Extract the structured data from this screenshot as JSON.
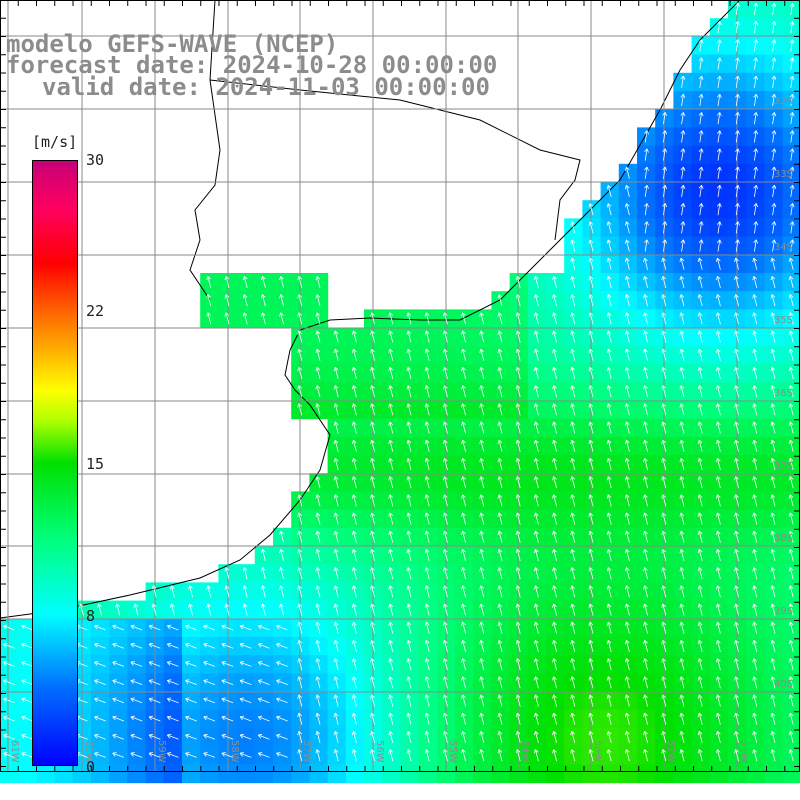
{
  "title": {
    "model": "modelo GEFS-WAVE (NCEP)",
    "forecast": "forecast date: 2024-10-28 00:00:00",
    "valid": "valid date: 2024-11-03 00:00:00"
  },
  "colorbar": {
    "unit": "[m/s]",
    "ticks": [
      "30",
      "22",
      "15",
      "8",
      "0"
    ],
    "colors": [
      "#0000ff",
      "#00ffff",
      "#00e000",
      "#ffff00",
      "#ff0000",
      "#c80078"
    ]
  },
  "grid": {
    "lat_labels": [
      "32S",
      "33S",
      "34S",
      "35S",
      "36S",
      "37S",
      "38S",
      "39S",
      "40S"
    ],
    "lon_labels": [
      "61W",
      "60W",
      "59W",
      "58W",
      "57W",
      "56W",
      "55W",
      "54W",
      "53W",
      "52W",
      "51W"
    ]
  }
}
